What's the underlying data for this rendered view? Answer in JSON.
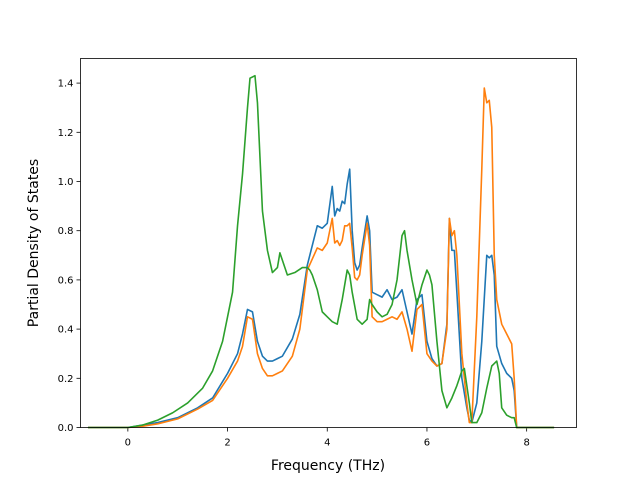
{
  "chart_data": {
    "type": "line",
    "title": "",
    "xlabel": "Frequency (THz)",
    "ylabel": "Partial Density of States",
    "xlim": [
      -0.95,
      9.0
    ],
    "ylim": [
      0.0,
      1.5
    ],
    "xticks": [
      0,
      2,
      4,
      6,
      8
    ],
    "yticks": [
      0.0,
      0.2,
      0.4,
      0.6,
      0.8,
      1.0,
      1.2,
      1.4
    ],
    "xtick_labels": [
      "0",
      "2",
      "4",
      "6",
      "8"
    ],
    "ytick_labels": [
      "0.0",
      "0.2",
      "0.4",
      "0.6",
      "0.8",
      "1.0",
      "1.2",
      "1.4"
    ],
    "grid": false,
    "legend": "none",
    "series": [
      {
        "color": "#1f77b4",
        "x": [
          -0.8,
          0.0,
          0.3,
          0.6,
          1.0,
          1.4,
          1.7,
          2.0,
          2.2,
          2.3,
          2.4,
          2.5,
          2.6,
          2.7,
          2.8,
          2.9,
          3.0,
          3.1,
          3.3,
          3.45,
          3.6,
          3.8,
          3.9,
          4.0,
          4.1,
          4.15,
          4.2,
          4.25,
          4.3,
          4.35,
          4.4,
          4.45,
          4.5,
          4.55,
          4.6,
          4.65,
          4.7,
          4.8,
          4.85,
          4.9,
          5.0,
          5.1,
          5.2,
          5.3,
          5.4,
          5.5,
          5.6,
          5.7,
          5.8,
          5.9,
          6.0,
          6.1,
          6.2,
          6.3,
          6.4,
          6.45,
          6.5,
          6.55,
          6.6,
          6.7,
          6.8,
          6.85,
          6.9,
          7.0,
          7.1,
          7.2,
          7.25,
          7.3,
          7.35,
          7.4,
          7.5,
          7.6,
          7.7,
          7.75,
          7.8,
          8.0,
          8.55
        ],
        "y": [
          0.0,
          0.0,
          0.01,
          0.02,
          0.04,
          0.08,
          0.12,
          0.22,
          0.3,
          0.38,
          0.48,
          0.47,
          0.35,
          0.29,
          0.27,
          0.27,
          0.28,
          0.29,
          0.36,
          0.46,
          0.66,
          0.82,
          0.81,
          0.83,
          0.98,
          0.86,
          0.89,
          0.88,
          0.92,
          0.91,
          0.99,
          1.05,
          0.8,
          0.67,
          0.64,
          0.66,
          0.73,
          0.86,
          0.8,
          0.55,
          0.54,
          0.53,
          0.56,
          0.52,
          0.53,
          0.56,
          0.47,
          0.38,
          0.52,
          0.54,
          0.35,
          0.28,
          0.25,
          0.26,
          0.42,
          0.85,
          0.72,
          0.72,
          0.55,
          0.2,
          0.08,
          0.03,
          0.02,
          0.1,
          0.35,
          0.7,
          0.69,
          0.7,
          0.62,
          0.33,
          0.26,
          0.22,
          0.2,
          0.15,
          0.0,
          0.0,
          0.0
        ]
      },
      {
        "color": "#ff7f0e",
        "x": [
          -0.8,
          0.0,
          0.3,
          0.6,
          1.0,
          1.4,
          1.7,
          2.0,
          2.2,
          2.3,
          2.4,
          2.5,
          2.6,
          2.7,
          2.8,
          2.9,
          3.0,
          3.1,
          3.3,
          3.45,
          3.6,
          3.8,
          3.9,
          4.0,
          4.1,
          4.15,
          4.2,
          4.25,
          4.3,
          4.35,
          4.4,
          4.45,
          4.5,
          4.55,
          4.6,
          4.65,
          4.7,
          4.8,
          4.85,
          4.9,
          5.0,
          5.1,
          5.2,
          5.3,
          5.4,
          5.5,
          5.6,
          5.7,
          5.8,
          5.9,
          6.0,
          6.1,
          6.2,
          6.3,
          6.4,
          6.45,
          6.5,
          6.55,
          6.6,
          6.7,
          6.8,
          6.85,
          6.9,
          7.0,
          7.1,
          7.15,
          7.2,
          7.25,
          7.3,
          7.35,
          7.4,
          7.5,
          7.6,
          7.7,
          7.75,
          7.8,
          8.0,
          8.55
        ],
        "y": [
          0.0,
          0.0,
          0.005,
          0.015,
          0.035,
          0.075,
          0.11,
          0.2,
          0.27,
          0.33,
          0.45,
          0.44,
          0.3,
          0.24,
          0.21,
          0.21,
          0.22,
          0.23,
          0.29,
          0.4,
          0.64,
          0.73,
          0.72,
          0.75,
          0.85,
          0.75,
          0.76,
          0.74,
          0.76,
          0.82,
          0.82,
          0.83,
          0.73,
          0.61,
          0.6,
          0.62,
          0.7,
          0.83,
          0.74,
          0.45,
          0.43,
          0.43,
          0.44,
          0.45,
          0.44,
          0.47,
          0.4,
          0.31,
          0.48,
          0.5,
          0.3,
          0.27,
          0.25,
          0.26,
          0.4,
          0.85,
          0.78,
          0.8,
          0.7,
          0.3,
          0.1,
          0.02,
          0.02,
          0.45,
          1.05,
          1.38,
          1.32,
          1.33,
          1.22,
          0.7,
          0.52,
          0.42,
          0.38,
          0.34,
          0.2,
          0.0,
          0.0,
          0.0
        ]
      },
      {
        "color": "#2ca02c",
        "x": [
          -0.8,
          0.0,
          0.3,
          0.6,
          0.9,
          1.2,
          1.35,
          1.5,
          1.7,
          1.9,
          2.0,
          2.1,
          2.2,
          2.3,
          2.4,
          2.45,
          2.55,
          2.6,
          2.7,
          2.8,
          2.9,
          3.0,
          3.05,
          3.2,
          3.35,
          3.5,
          3.6,
          3.65,
          3.7,
          3.8,
          3.9,
          4.0,
          4.1,
          4.2,
          4.3,
          4.4,
          4.45,
          4.5,
          4.6,
          4.7,
          4.8,
          4.85,
          4.9,
          5.0,
          5.1,
          5.2,
          5.3,
          5.4,
          5.5,
          5.55,
          5.6,
          5.7,
          5.8,
          5.9,
          6.0,
          6.05,
          6.1,
          6.2,
          6.3,
          6.4,
          6.5,
          6.6,
          6.7,
          6.75,
          6.8,
          6.85,
          6.9,
          7.0,
          7.1,
          7.2,
          7.3,
          7.35,
          7.4,
          7.45,
          7.5,
          7.6,
          7.7,
          7.75,
          7.8,
          8.0,
          8.55
        ],
        "y": [
          0.0,
          0.0,
          0.01,
          0.03,
          0.06,
          0.1,
          0.13,
          0.16,
          0.23,
          0.35,
          0.45,
          0.55,
          0.82,
          1.03,
          1.3,
          1.42,
          1.43,
          1.32,
          0.88,
          0.72,
          0.63,
          0.65,
          0.71,
          0.62,
          0.63,
          0.65,
          0.65,
          0.64,
          0.62,
          0.56,
          0.47,
          0.45,
          0.43,
          0.42,
          0.52,
          0.64,
          0.62,
          0.55,
          0.44,
          0.42,
          0.44,
          0.52,
          0.5,
          0.47,
          0.45,
          0.46,
          0.5,
          0.6,
          0.78,
          0.8,
          0.72,
          0.6,
          0.5,
          0.58,
          0.64,
          0.62,
          0.58,
          0.35,
          0.15,
          0.08,
          0.12,
          0.17,
          0.23,
          0.24,
          0.17,
          0.1,
          0.02,
          0.02,
          0.06,
          0.16,
          0.25,
          0.26,
          0.27,
          0.22,
          0.08,
          0.05,
          0.04,
          0.04,
          0.0,
          0.0,
          0.0
        ]
      }
    ]
  }
}
